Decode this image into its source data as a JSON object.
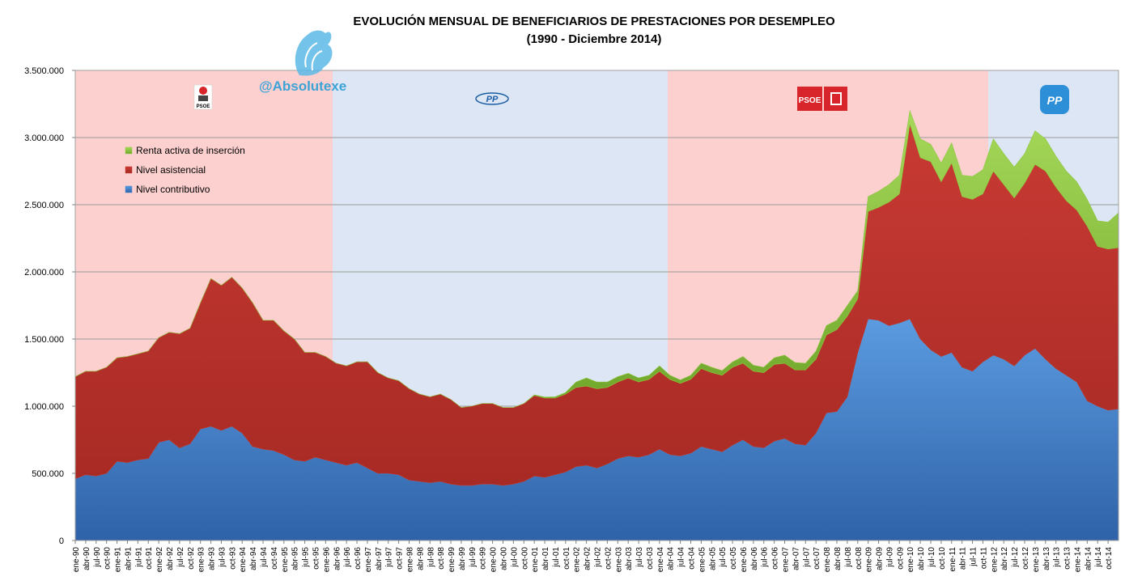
{
  "chart_data": {
    "type": "area",
    "stacked": true,
    "title": "EVOLUCIÓN MENSUAL DE BENEFICIARIOS DE PRESTACIONES POR DESEMPLEO",
    "subtitle": "(1990 - Diciembre 2014)",
    "ylim": [
      0,
      3500000
    ],
    "yticks": [
      "0",
      "500.000",
      "1.000.000",
      "1.500.000",
      "2.000.000",
      "2.500.000",
      "3.000.000",
      "3.500.000"
    ],
    "grid": true,
    "legend_position": "top-left",
    "xticklabels": [
      "ene-90",
      "abr-90",
      "jul-90",
      "oct-90",
      "ene-91",
      "abr-91",
      "jul-91",
      "oct-91",
      "ene-92",
      "abr-92",
      "jul-92",
      "oct-92",
      "ene-93",
      "abr-93",
      "jul-93",
      "oct-93",
      "ene-94",
      "abr-94",
      "jul-94",
      "oct-94",
      "ene-95",
      "abr-95",
      "jul-95",
      "oct-95",
      "ene-96",
      "abr-96",
      "jul-96",
      "oct-96",
      "ene-97",
      "abr-97",
      "jul-97",
      "oct-97",
      "ene-98",
      "abr-98",
      "jul-98",
      "oct-98",
      "ene-99",
      "abr-99",
      "jul-99",
      "oct-99",
      "ene-00",
      "abr-00",
      "jul-00",
      "oct-00",
      "ene-01",
      "abr-01",
      "jul-01",
      "oct-01",
      "ene-02",
      "abr-02",
      "jul-02",
      "oct-02",
      "ene-03",
      "abr-03",
      "jul-03",
      "oct-03",
      "ene-04",
      "abr-04",
      "jul-04",
      "oct-04",
      "ene-05",
      "abr-05",
      "jul-05",
      "oct-05",
      "ene-06",
      "abr-06",
      "jul-06",
      "oct-06",
      "ene-07",
      "abr-07",
      "jul-07",
      "oct-07",
      "ene-08",
      "abr-08",
      "jul-08",
      "oct-08",
      "ene-09",
      "abr-09",
      "jul-09",
      "oct-09",
      "ene-10",
      "abr-10",
      "jul-10",
      "oct-10",
      "ene-11",
      "abr-11",
      "jul-11",
      "oct-11",
      "ene-12",
      "abr-12",
      "jul-12",
      "oct-12",
      "ene-13",
      "abr-13",
      "jul-13",
      "oct-13",
      "ene-14",
      "abr-14",
      "jul-14",
      "oct-14"
    ],
    "x": [
      "ene-90",
      "abr-90",
      "jul-90",
      "oct-90",
      "ene-91",
      "abr-91",
      "jul-91",
      "oct-91",
      "ene-92",
      "abr-92",
      "jul-92",
      "oct-92",
      "ene-93",
      "abr-93",
      "jul-93",
      "oct-93",
      "ene-94",
      "abr-94",
      "jul-94",
      "oct-94",
      "ene-95",
      "abr-95",
      "jul-95",
      "oct-95",
      "ene-96",
      "abr-96",
      "jul-96",
      "oct-96",
      "ene-97",
      "abr-97",
      "jul-97",
      "oct-97",
      "ene-98",
      "abr-98",
      "jul-98",
      "oct-98",
      "ene-99",
      "abr-99",
      "jul-99",
      "oct-99",
      "ene-00",
      "abr-00",
      "jul-00",
      "oct-00",
      "ene-01",
      "abr-01",
      "jul-01",
      "oct-01",
      "ene-02",
      "abr-02",
      "jul-02",
      "oct-02",
      "ene-03",
      "abr-03",
      "jul-03",
      "oct-03",
      "ene-04",
      "abr-04",
      "jul-04",
      "oct-04",
      "ene-05",
      "abr-05",
      "jul-05",
      "oct-05",
      "ene-06",
      "abr-06",
      "jul-06",
      "oct-06",
      "ene-07",
      "abr-07",
      "jul-07",
      "oct-07",
      "ene-08",
      "abr-08",
      "jul-08",
      "oct-08",
      "ene-09",
      "abr-09",
      "jul-09",
      "oct-09",
      "ene-10",
      "abr-10",
      "jul-10",
      "oct-10",
      "ene-11",
      "abr-11",
      "jul-11",
      "oct-11",
      "ene-12",
      "abr-12",
      "jul-12",
      "oct-12",
      "ene-13",
      "abr-13",
      "jul-13",
      "oct-13",
      "ene-14",
      "abr-14",
      "jul-14",
      "oct-14",
      "dic-14"
    ],
    "series": [
      {
        "name": "Nivel contributivo",
        "color": "#4f86cf",
        "values": [
          460000,
          490000,
          480000,
          500000,
          590000,
          580000,
          600000,
          610000,
          730000,
          750000,
          690000,
          720000,
          830000,
          850000,
          820000,
          850000,
          800000,
          700000,
          680000,
          670000,
          640000,
          600000,
          590000,
          620000,
          600000,
          580000,
          560000,
          580000,
          540000,
          500000,
          500000,
          490000,
          450000,
          440000,
          430000,
          440000,
          420000,
          410000,
          410000,
          420000,
          420000,
          410000,
          420000,
          440000,
          480000,
          470000,
          490000,
          510000,
          550000,
          560000,
          540000,
          570000,
          610000,
          630000,
          620000,
          640000,
          680000,
          640000,
          630000,
          650000,
          700000,
          680000,
          660000,
          710000,
          750000,
          700000,
          690000,
          740000,
          760000,
          720000,
          710000,
          800000,
          950000,
          960000,
          1070000,
          1400000,
          1650000,
          1640000,
          1600000,
          1620000,
          1650000,
          1500000,
          1420000,
          1370000,
          1400000,
          1290000,
          1260000,
          1330000,
          1380000,
          1350000,
          1300000,
          1380000,
          1430000,
          1350000,
          1280000,
          1230000,
          1180000,
          1040000,
          1000000,
          970000,
          980000
        ]
      },
      {
        "name": "Nivel asistencial",
        "color": "#c0392b",
        "values": [
          760000,
          770000,
          780000,
          790000,
          770000,
          790000,
          790000,
          800000,
          780000,
          800000,
          850000,
          860000,
          940000,
          1100000,
          1080000,
          1110000,
          1080000,
          1070000,
          960000,
          970000,
          920000,
          900000,
          810000,
          780000,
          770000,
          740000,
          740000,
          750000,
          790000,
          750000,
          710000,
          700000,
          680000,
          650000,
          640000,
          650000,
          630000,
          580000,
          590000,
          600000,
          600000,
          580000,
          570000,
          580000,
          600000,
          590000,
          570000,
          580000,
          590000,
          590000,
          590000,
          570000,
          570000,
          580000,
          560000,
          560000,
          580000,
          560000,
          540000,
          550000,
          580000,
          570000,
          570000,
          580000,
          570000,
          560000,
          560000,
          570000,
          560000,
          550000,
          560000,
          550000,
          580000,
          610000,
          600000,
          400000,
          800000,
          840000,
          920000,
          960000,
          1450000,
          1350000,
          1400000,
          1300000,
          1410000,
          1270000,
          1280000,
          1250000,
          1370000,
          1300000,
          1250000,
          1280000,
          1370000,
          1400000,
          1350000,
          1300000,
          1280000,
          1300000,
          1190000,
          1200000,
          1200000
        ]
      },
      {
        "name": "Renta activa de inserción",
        "color": "#8dc63f",
        "values": [
          0,
          0,
          0,
          0,
          0,
          0,
          0,
          0,
          0,
          0,
          0,
          0,
          0,
          0,
          0,
          0,
          0,
          0,
          0,
          0,
          0,
          0,
          0,
          0,
          0,
          0,
          0,
          0,
          0,
          0,
          0,
          0,
          0,
          0,
          0,
          0,
          0,
          0,
          0,
          0,
          0,
          0,
          0,
          0,
          5000,
          8000,
          10000,
          12000,
          40000,
          60000,
          50000,
          40000,
          40000,
          35000,
          30000,
          30000,
          40000,
          30000,
          25000,
          30000,
          40000,
          40000,
          35000,
          40000,
          50000,
          45000,
          40000,
          50000,
          60000,
          55000,
          50000,
          60000,
          70000,
          70000,
          80000,
          60000,
          110000,
          120000,
          130000,
          140000,
          100000,
          140000,
          130000,
          140000,
          150000,
          160000,
          170000,
          180000,
          240000,
          230000,
          230000,
          220000,
          250000,
          240000,
          230000,
          220000,
          210000,
          200000,
          190000,
          200000,
          260000
        ]
      }
    ]
  },
  "parties": [
    {
      "label": "PSOE"
    },
    {
      "label": "PP"
    },
    {
      "label": "PSOE"
    },
    {
      "label": "PP"
    }
  ],
  "watermark": "@Absolutexe"
}
